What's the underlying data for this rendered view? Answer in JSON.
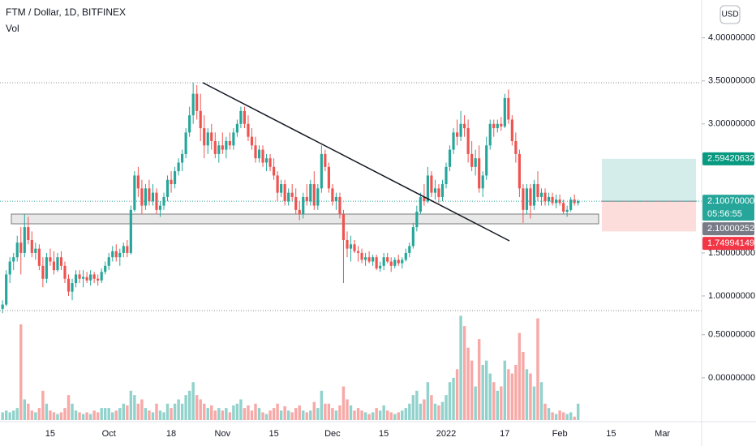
{
  "chart_data": {
    "type": "candlestick",
    "title": "FTM / Dollar, 1D, BITFINEX",
    "volume_label": "Vol",
    "currency": "USD",
    "up_color": "#26a69a",
    "down_color": "#ef5350",
    "xlim": [
      -0.7,
      190.7
    ],
    "xticks": [
      {
        "value": 13,
        "label": "15"
      },
      {
        "value": 29,
        "label": "Oct"
      },
      {
        "value": 46,
        "label": "18"
      },
      {
        "value": 60,
        "label": "Nov"
      },
      {
        "value": 74,
        "label": "15"
      },
      {
        "value": 90,
        "label": "Dec"
      },
      {
        "value": 104,
        "label": "15"
      },
      {
        "value": 121,
        "label": "2022"
      },
      {
        "value": 137,
        "label": "17"
      },
      {
        "value": 152,
        "label": "Feb"
      },
      {
        "value": 166,
        "label": "15"
      },
      {
        "value": 180,
        "label": "Mar"
      }
    ],
    "ylim": [
      0.83,
      4.44
    ],
    "yticks": [
      {
        "value": 1,
        "label": "1.00000000"
      },
      {
        "value": 1.5,
        "label": "1.50000000"
      },
      {
        "value": 3,
        "label": "3.00000000"
      },
      {
        "value": 3.5,
        "label": "3.50000000"
      },
      {
        "value": 4,
        "label": "4.00000000"
      }
    ],
    "y2lim": [
      -0.49,
      0.78
    ],
    "y2ticks": [
      {
        "value": 0.5,
        "label": "0.50000000"
      },
      {
        "value": 0,
        "label": "0.00000000"
      }
    ],
    "target_price": 2.59420632,
    "current_price": {
      "value": 2.1007,
      "label": "2.10070000"
    },
    "countdown": "05:56:55",
    "zone_price": 2.10000252,
    "stop_price": 1.74994149,
    "candles": [
      [
        0.85,
        0.95,
        0.8,
        0.9
      ],
      [
        0.9,
        1.3,
        0.88,
        1.25
      ],
      [
        1.25,
        1.45,
        1.15,
        1.4
      ],
      [
        1.4,
        1.5,
        1.3,
        1.45
      ],
      [
        1.45,
        1.7,
        1.4,
        1.62
      ],
      [
        1.62,
        1.8,
        1.25,
        1.5
      ],
      [
        1.5,
        1.95,
        1.45,
        1.8
      ],
      [
        1.8,
        1.92,
        1.6,
        1.65
      ],
      [
        1.65,
        1.75,
        1.45,
        1.5
      ],
      [
        1.5,
        1.62,
        1.42,
        1.55
      ],
      [
        1.55,
        1.6,
        1.3,
        1.35
      ],
      [
        1.35,
        1.45,
        1.1,
        1.2
      ],
      [
        1.2,
        1.5,
        1.15,
        1.45
      ],
      [
        1.45,
        1.55,
        1.35,
        1.4
      ],
      [
        1.4,
        1.52,
        1.25,
        1.3
      ],
      [
        1.3,
        1.5,
        1.28,
        1.45
      ],
      [
        1.45,
        1.52,
        1.3,
        1.35
      ],
      [
        1.35,
        1.4,
        1.15,
        1.2
      ],
      [
        1.2,
        1.25,
        1.0,
        1.05
      ],
      [
        1.05,
        1.2,
        0.95,
        1.15
      ],
      [
        1.15,
        1.3,
        1.1,
        1.25
      ],
      [
        1.25,
        1.3,
        1.15,
        1.2
      ],
      [
        1.2,
        1.3,
        1.1,
        1.22
      ],
      [
        1.22,
        1.28,
        1.15,
        1.18
      ],
      [
        1.18,
        1.3,
        1.12,
        1.25
      ],
      [
        1.25,
        1.28,
        1.15,
        1.2
      ],
      [
        1.2,
        1.25,
        1.12,
        1.18
      ],
      [
        1.18,
        1.32,
        1.15,
        1.28
      ],
      [
        1.28,
        1.4,
        1.25,
        1.35
      ],
      [
        1.35,
        1.5,
        1.3,
        1.45
      ],
      [
        1.45,
        1.58,
        1.4,
        1.52
      ],
      [
        1.52,
        1.6,
        1.4,
        1.45
      ],
      [
        1.45,
        1.55,
        1.35,
        1.5
      ],
      [
        1.5,
        1.62,
        1.45,
        1.58
      ],
      [
        1.58,
        1.65,
        1.45,
        1.5
      ],
      [
        1.5,
        2.05,
        1.48,
        2.0
      ],
      [
        2.0,
        2.45,
        1.98,
        2.4
      ],
      [
        2.4,
        2.5,
        2.15,
        2.25
      ],
      [
        2.25,
        2.35,
        1.95,
        2.05
      ],
      [
        2.05,
        2.3,
        2.0,
        2.25
      ],
      [
        2.25,
        2.35,
        2.05,
        2.1
      ],
      [
        2.1,
        2.3,
        2.05,
        2.2
      ],
      [
        2.2,
        2.25,
        1.95,
        2.0
      ],
      [
        2.0,
        2.1,
        1.92,
        2.05
      ],
      [
        2.05,
        2.2,
        2.0,
        2.15
      ],
      [
        2.15,
        2.4,
        2.1,
        2.35
      ],
      [
        2.35,
        2.45,
        2.2,
        2.3
      ],
      [
        2.3,
        2.5,
        2.25,
        2.45
      ],
      [
        2.45,
        2.6,
        2.4,
        2.55
      ],
      [
        2.55,
        2.7,
        2.45,
        2.65
      ],
      [
        2.65,
        2.95,
        2.6,
        2.9
      ],
      [
        2.9,
        3.2,
        2.85,
        3.1
      ],
      [
        3.1,
        3.48,
        3.0,
        3.35
      ],
      [
        3.35,
        3.45,
        3.05,
        3.15
      ],
      [
        3.15,
        3.35,
        2.8,
        2.95
      ],
      [
        2.95,
        3.1,
        2.6,
        2.75
      ],
      [
        2.75,
        2.95,
        2.65,
        2.9
      ],
      [
        2.9,
        3.0,
        2.7,
        2.8
      ],
      [
        2.8,
        2.9,
        2.6,
        2.65
      ],
      [
        2.65,
        2.8,
        2.55,
        2.75
      ],
      [
        2.75,
        2.9,
        2.65,
        2.7
      ],
      [
        2.7,
        2.85,
        2.6,
        2.8
      ],
      [
        2.8,
        2.9,
        2.7,
        2.75
      ],
      [
        2.75,
        2.95,
        2.7,
        2.9
      ],
      [
        2.9,
        3.05,
        2.85,
        3.0
      ],
      [
        3.0,
        3.2,
        2.95,
        3.15
      ],
      [
        3.15,
        3.2,
        2.95,
        3.0
      ],
      [
        3.0,
        3.1,
        2.8,
        2.85
      ],
      [
        2.85,
        2.95,
        2.7,
        2.75
      ],
      [
        2.75,
        2.85,
        2.55,
        2.6
      ],
      [
        2.6,
        2.75,
        2.55,
        2.7
      ],
      [
        2.7,
        2.75,
        2.5,
        2.55
      ],
      [
        2.55,
        2.65,
        2.45,
        2.6
      ],
      [
        2.6,
        2.65,
        2.45,
        2.5
      ],
      [
        2.5,
        2.6,
        2.35,
        2.4
      ],
      [
        2.4,
        2.45,
        2.1,
        2.2
      ],
      [
        2.2,
        2.35,
        2.15,
        2.3
      ],
      [
        2.3,
        2.35,
        2.05,
        2.1
      ],
      [
        2.1,
        2.25,
        2.05,
        2.2
      ],
      [
        2.2,
        2.3,
        2.1,
        2.15
      ],
      [
        2.15,
        2.25,
        1.95,
        2.0
      ],
      [
        2.0,
        2.1,
        1.88,
        1.95
      ],
      [
        1.95,
        2.2,
        1.9,
        2.15
      ],
      [
        2.15,
        2.3,
        2.05,
        2.1
      ],
      [
        2.1,
        2.35,
        2.05,
        2.3
      ],
      [
        2.3,
        2.45,
        2.0,
        2.05
      ],
      [
        2.05,
        2.3,
        2.0,
        2.25
      ],
      [
        2.25,
        2.75,
        2.2,
        2.65
      ],
      [
        2.65,
        2.7,
        2.45,
        2.5
      ],
      [
        2.5,
        2.55,
        2.2,
        2.25
      ],
      [
        2.25,
        2.3,
        2.05,
        2.1
      ],
      [
        2.1,
        2.2,
        2.0,
        2.15
      ],
      [
        2.15,
        2.2,
        1.9,
        1.95
      ],
      [
        1.95,
        2.0,
        1.15,
        1.65
      ],
      [
        1.65,
        1.75,
        1.45,
        1.55
      ],
      [
        1.55,
        1.7,
        1.4,
        1.6
      ],
      [
        1.6,
        1.65,
        1.5,
        1.52
      ],
      [
        1.52,
        1.58,
        1.4,
        1.5
      ],
      [
        1.5,
        1.55,
        1.38,
        1.42
      ],
      [
        1.42,
        1.5,
        1.35,
        1.45
      ],
      [
        1.45,
        1.52,
        1.38,
        1.4
      ],
      [
        1.4,
        1.48,
        1.35,
        1.45
      ],
      [
        1.45,
        1.48,
        1.3,
        1.32
      ],
      [
        1.32,
        1.4,
        1.28,
        1.35
      ],
      [
        1.35,
        1.5,
        1.3,
        1.45
      ],
      [
        1.45,
        1.5,
        1.38,
        1.4
      ],
      [
        1.4,
        1.45,
        1.28,
        1.35
      ],
      [
        1.35,
        1.45,
        1.32,
        1.42
      ],
      [
        1.42,
        1.48,
        1.35,
        1.38
      ],
      [
        1.38,
        1.45,
        1.32,
        1.42
      ],
      [
        1.42,
        1.55,
        1.4,
        1.5
      ],
      [
        1.5,
        1.62,
        1.45,
        1.58
      ],
      [
        1.58,
        1.85,
        1.55,
        1.8
      ],
      [
        1.8,
        2.05,
        1.75,
        1.98
      ],
      [
        1.98,
        2.2,
        1.95,
        2.15
      ],
      [
        2.15,
        2.3,
        2.05,
        2.1
      ],
      [
        2.1,
        2.5,
        2.08,
        2.4
      ],
      [
        2.4,
        2.45,
        2.15,
        2.2
      ],
      [
        2.2,
        2.35,
        2.12,
        2.25
      ],
      [
        2.25,
        2.3,
        2.08,
        2.15
      ],
      [
        2.15,
        2.35,
        2.1,
        2.3
      ],
      [
        2.3,
        2.55,
        2.25,
        2.5
      ],
      [
        2.5,
        2.75,
        2.45,
        2.7
      ],
      [
        2.7,
        2.95,
        2.65,
        2.9
      ],
      [
        2.9,
        3.05,
        2.75,
        2.85
      ],
      [
        2.85,
        3.15,
        2.8,
        3.0
      ],
      [
        3.0,
        3.1,
        2.85,
        2.95
      ],
      [
        2.95,
        3.05,
        2.55,
        2.65
      ],
      [
        2.65,
        2.8,
        2.45,
        2.5
      ],
      [
        2.5,
        2.7,
        2.4,
        2.6
      ],
      [
        2.6,
        2.75,
        2.2,
        2.25
      ],
      [
        2.25,
        2.45,
        2.15,
        2.4
      ],
      [
        2.4,
        2.85,
        2.35,
        2.75
      ],
      [
        2.75,
        3.05,
        2.7,
        3.0
      ],
      [
        3.0,
        3.05,
        2.85,
        2.95
      ],
      [
        2.95,
        3.05,
        2.9,
        3.0
      ],
      [
        3.0,
        3.08,
        2.92,
        2.97
      ],
      [
        2.97,
        3.35,
        2.95,
        3.3
      ],
      [
        3.3,
        3.4,
        3.0,
        3.05
      ],
      [
        3.05,
        3.1,
        2.75,
        2.8
      ],
      [
        2.8,
        2.9,
        2.55,
        2.65
      ],
      [
        2.65,
        2.7,
        2.15,
        2.25
      ],
      [
        2.25,
        2.3,
        1.85,
        2.0
      ],
      [
        2.0,
        2.3,
        1.95,
        2.25
      ],
      [
        2.25,
        2.3,
        1.9,
        2.05
      ],
      [
        2.05,
        2.35,
        2.0,
        2.3
      ],
      [
        2.3,
        2.45,
        2.1,
        2.15
      ],
      [
        2.15,
        2.25,
        2.05,
        2.2
      ],
      [
        2.2,
        2.25,
        2.05,
        2.1
      ],
      [
        2.1,
        2.2,
        2.05,
        2.15
      ],
      [
        2.15,
        2.2,
        2.05,
        2.08
      ],
      [
        2.08,
        2.18,
        2.02,
        2.12
      ],
      [
        2.12,
        2.18,
        2.05,
        2.08
      ],
      [
        2.08,
        2.12,
        1.95,
        1.98
      ],
      [
        1.98,
        2.05,
        1.92,
        2.0
      ],
      [
        2.0,
        2.15,
        1.98,
        2.12
      ],
      [
        2.12,
        2.18,
        2.05,
        2.08
      ],
      [
        2.08,
        2.12,
        2.05,
        2.1
      ]
    ],
    "volume": [
      -0.4,
      -0.38,
      -0.4,
      -0.38,
      -0.35,
      0.62,
      -0.25,
      -0.3,
      -0.38,
      -0.4,
      -0.35,
      -0.15,
      -0.3,
      -0.38,
      -0.4,
      -0.42,
      -0.4,
      -0.35,
      -0.2,
      -0.3,
      -0.38,
      -0.4,
      -0.42,
      -0.4,
      -0.42,
      -0.38,
      -0.4,
      -0.35,
      -0.35,
      -0.35,
      -0.4,
      -0.38,
      -0.35,
      -0.3,
      -0.32,
      -0.15,
      -0.2,
      -0.3,
      -0.25,
      -0.35,
      -0.38,
      -0.4,
      -0.3,
      -0.38,
      -0.4,
      -0.3,
      -0.35,
      -0.3,
      -0.25,
      -0.3,
      -0.2,
      -0.15,
      -0.05,
      -0.2,
      -0.25,
      -0.3,
      -0.35,
      -0.32,
      -0.38,
      -0.35,
      -0.38,
      -0.35,
      -0.4,
      -0.32,
      -0.3,
      -0.25,
      -0.35,
      -0.32,
      -0.38,
      -0.3,
      -0.35,
      -0.4,
      -0.42,
      -0.38,
      -0.35,
      -0.3,
      -0.38,
      -0.33,
      -0.38,
      -0.4,
      -0.35,
      -0.32,
      -0.38,
      -0.4,
      -0.38,
      -0.28,
      -0.35,
      -0.15,
      -0.3,
      -0.3,
      -0.35,
      -0.38,
      -0.32,
      -0.1,
      -0.25,
      -0.32,
      -0.38,
      -0.35,
      -0.38,
      -0.4,
      -0.42,
      -0.4,
      -0.35,
      -0.38,
      -0.32,
      -0.38,
      -0.4,
      -0.42,
      -0.4,
      -0.38,
      -0.35,
      -0.3,
      -0.2,
      -0.15,
      -0.3,
      -0.25,
      -0.05,
      -0.2,
      -0.3,
      -0.32,
      -0.28,
      -0.2,
      -0.05,
      0.0,
      0.1,
      0.72,
      0.6,
      0.35,
      0.2,
      -0.1,
      0.45,
      0.15,
      0.2,
      0.05,
      -0.05,
      -0.15,
      -0.1,
      0.2,
      0.1,
      0.05,
      0.15,
      0.52,
      0.3,
      0.1,
      0.05,
      -0.1,
      0.69,
      -0.05,
      -0.3,
      -0.35,
      -0.4,
      -0.42,
      -0.38,
      -0.4,
      -0.42,
      -0.4,
      -0.45,
      -0.3
    ]
  }
}
